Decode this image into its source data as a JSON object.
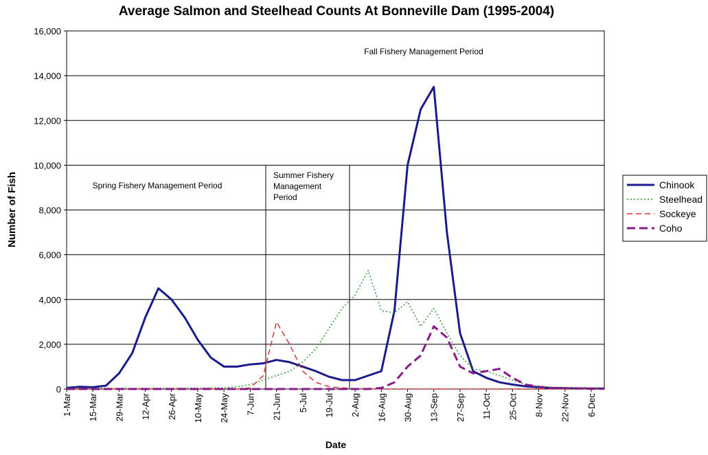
{
  "chart_data": {
    "type": "line",
    "title": "Average Salmon and Steelhead Counts At Bonneville Dam (1995-2004)",
    "x_label": "Date",
    "y_label": "Number of Fish",
    "annotations": {
      "spring": [
        "Spring Fishery Management Period"
      ],
      "summer": [
        "Summer Fishery",
        "Management",
        "Period"
      ],
      "fall": [
        "Fall Fishery Management Period"
      ]
    },
    "categories": [
      "1-Mar",
      null,
      "15-Mar",
      null,
      "29-Mar",
      null,
      "12-Apr",
      null,
      "26-Apr",
      null,
      "10-May",
      null,
      "24-May",
      null,
      "7-Jun",
      null,
      "21-Jun",
      null,
      "5-Jul",
      null,
      "19-Jul",
      null,
      "2-Aug",
      null,
      "16-Aug",
      null,
      "30-Aug",
      null,
      "13-Sep",
      null,
      "27-Sep",
      null,
      "11-Oct",
      null,
      "25-Oct",
      null,
      "8-Nov",
      null,
      "22-Nov",
      null,
      "6-Dec",
      null
    ],
    "series": [
      {
        "name": "Chinook",
        "color": "#1a1a8c",
        "dash": "solid",
        "width": 3,
        "values": [
          50,
          100,
          80,
          150,
          700,
          1600,
          3200,
          4500,
          4000,
          3200,
          2200,
          1400,
          1000,
          1000,
          1100,
          1150,
          1300,
          1200,
          1000,
          800,
          550,
          400,
          400,
          600,
          800,
          3500,
          10000,
          12500,
          13500,
          7000,
          2500,
          800,
          500,
          300,
          200,
          120,
          80,
          50,
          40,
          30,
          20,
          20
        ]
      },
      {
        "name": "Steelhead",
        "color": "#2e9a2e",
        "dash": "dotted",
        "width": 1.5,
        "values": [
          30,
          30,
          30,
          30,
          30,
          30,
          30,
          30,
          30,
          40,
          40,
          50,
          50,
          100,
          200,
          400,
          600,
          800,
          1200,
          1800,
          2700,
          3600,
          4200,
          5300,
          3500,
          3400,
          3900,
          2800,
          3600,
          2500,
          1500,
          900,
          800,
          600,
          400,
          200,
          120,
          80,
          60,
          40,
          30,
          20
        ]
      },
      {
        "name": "Sockeye",
        "color": "#e03030",
        "dash": "dashed",
        "width": 1.5,
        "values": [
          0,
          0,
          0,
          0,
          0,
          0,
          0,
          0,
          0,
          0,
          0,
          0,
          0,
          0,
          50,
          600,
          3000,
          2000,
          800,
          300,
          100,
          50,
          20,
          10,
          0,
          0,
          0,
          0,
          0,
          0,
          0,
          0,
          0,
          0,
          0,
          0,
          0,
          0,
          0,
          0,
          0,
          0
        ]
      },
      {
        "name": "Coho",
        "color": "#8a1a8a",
        "dash": "longdash",
        "width": 3,
        "values": [
          0,
          0,
          0,
          0,
          0,
          0,
          0,
          0,
          0,
          0,
          0,
          0,
          0,
          0,
          0,
          0,
          0,
          0,
          0,
          0,
          0,
          0,
          0,
          0,
          50,
          300,
          1000,
          1500,
          2800,
          2300,
          1000,
          700,
          800,
          900,
          500,
          200,
          100,
          50,
          30,
          20,
          10,
          10
        ]
      }
    ],
    "ylim": [
      0,
      16000
    ],
    "yticks": [
      0,
      {
        "value": 2000,
        "label": "2,000"
      },
      {
        "value": 4000,
        "label": "4,000"
      },
      {
        "value": 6000,
        "label": "6,000"
      },
      {
        "value": 8000,
        "label": "8,000"
      },
      {
        "value": 10000,
        "label": "10,000"
      },
      {
        "value": 12000,
        "label": "12,000"
      },
      {
        "value": 14000,
        "label": "14,000"
      },
      {
        "value": 16000,
        "label": "16,000"
      }
    ],
    "grid": true,
    "legend": "right"
  }
}
